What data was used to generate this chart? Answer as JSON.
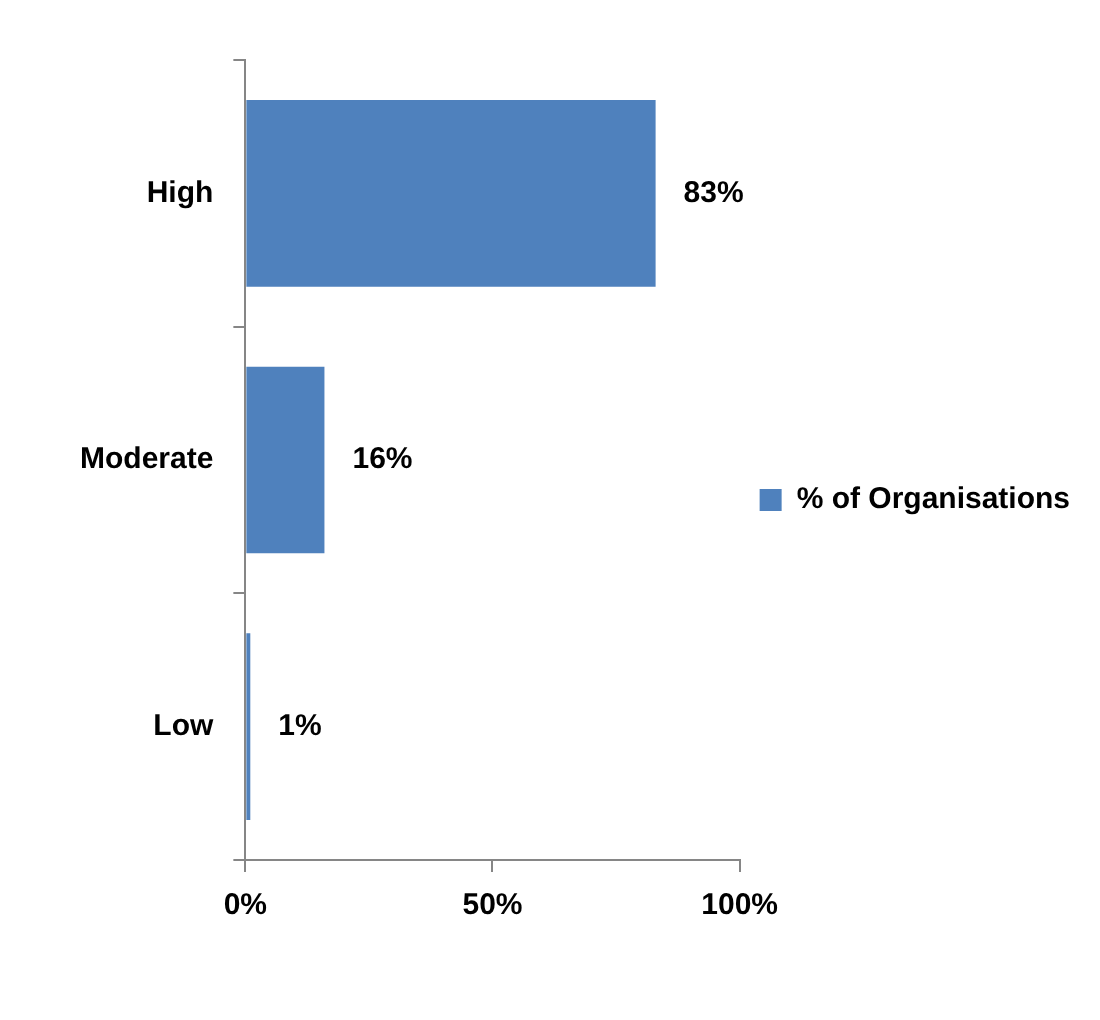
{
  "chart_data": {
    "type": "bar",
    "orientation": "horizontal",
    "categories": [
      "High",
      "Moderate",
      "Low"
    ],
    "series": [
      {
        "name": "% of Organisations",
        "color": "#4f81bd",
        "values": [
          83,
          16,
          1
        ],
        "value_labels": [
          "83%",
          "16%",
          "1%"
        ]
      }
    ],
    "xlim": [
      0,
      100
    ],
    "xticks": [
      {
        "value": 0,
        "label": "0%"
      },
      {
        "value": 50,
        "label": "50%"
      },
      {
        "value": 100,
        "label": "100%"
      }
    ],
    "grid": false,
    "legend": "right"
  }
}
